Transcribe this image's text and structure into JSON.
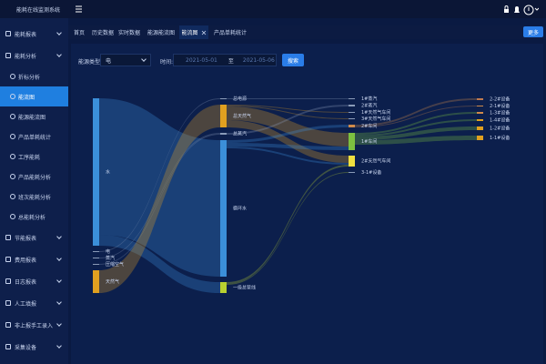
{
  "header": {
    "title": "能耗在线监测系统"
  },
  "sidebar": {
    "groups": [
      {
        "label": "能耗报表"
      },
      {
        "label": "能耗分析",
        "children": [
          "折标分析",
          "能流图",
          "能源能流图",
          "产品单耗统计",
          "工序能耗",
          "产品能耗分析",
          "班次能耗分析",
          "总能耗分析"
        ]
      },
      {
        "label": "节能报表"
      },
      {
        "label": "费用报表"
      },
      {
        "label": "日志报表"
      },
      {
        "label": "人工填报"
      },
      {
        "label": "非上报手工录入"
      },
      {
        "label": "采集设备"
      }
    ]
  },
  "tabs": {
    "items": [
      "首页",
      "历史数据",
      "实时数据",
      "能源能流图",
      "能流图",
      "产品单耗统计"
    ],
    "more": "更多"
  },
  "filter": {
    "type_label": "能源类型:",
    "type_value": "电",
    "time_label": "时间:",
    "start": "2021-05-01",
    "separator": "至",
    "end": "2021-05-06",
    "search": "搜索"
  },
  "sankey": {
    "nodes": [
      {
        "label": "水",
        "color": "#3b8fd9"
      },
      {
        "label": "电",
        "color": "#8a9bb8"
      },
      {
        "label": "蒸汽",
        "color": "#8a9bb8"
      },
      {
        "label": "压缩空气",
        "color": "#8a9bb8"
      },
      {
        "label": "天然气",
        "color": "#e0a020"
      },
      {
        "label": "总电源",
        "color": "#8a9bb8"
      },
      {
        "label": "总天然气",
        "color": "#e0a020"
      },
      {
        "label": "总蒸汽",
        "color": "#8a9bb8"
      },
      {
        "label": "循环水",
        "color": "#3b8fd9"
      },
      {
        "label": "一级总管线",
        "color": "#b8d030"
      },
      {
        "label": "1#蒸汽",
        "color": "#8a9bb8"
      },
      {
        "label": "2#蒸汽",
        "color": "#8a9bb8"
      },
      {
        "label": "1#天然气车间",
        "color": "#8a9bb8"
      },
      {
        "label": "3#天然气车间",
        "color": "#8a9bb8"
      },
      {
        "label": "2#车间",
        "color": "#d08a4a"
      },
      {
        "label": "1#车间",
        "color": "#7cc040"
      },
      {
        "label": "2#天然气车间",
        "color": "#f0e040"
      },
      {
        "label": "3-1#设备",
        "color": "#8a9bb8"
      },
      {
        "label": "2-2#设备",
        "color": "#c07a50"
      },
      {
        "label": "2-1#设备",
        "color": "#d08a4a"
      },
      {
        "label": "1-3#设备",
        "color": "#d08a4a"
      },
      {
        "label": "1-4#设备",
        "color": "#e0a020"
      },
      {
        "label": "1-2#设备",
        "color": "#e0a020"
      },
      {
        "label": "1-1#设备",
        "color": "#e0a020"
      }
    ],
    "links": [
      {
        "source": 0,
        "target": 8,
        "value": 150
      },
      {
        "source": 0,
        "target": 9,
        "value": 12
      },
      {
        "source": 1,
        "target": 5,
        "value": 1
      },
      {
        "source": 2,
        "target": 7,
        "value": 1
      },
      {
        "source": 3,
        "target": 7,
        "value": 1
      },
      {
        "source": 4,
        "target": 6,
        "value": 25
      },
      {
        "source": 5,
        "target": 10,
        "value": 1
      },
      {
        "source": 6,
        "target": 12,
        "value": 1
      },
      {
        "source": 6,
        "target": 13,
        "value": 1
      },
      {
        "source": 6,
        "target": 15,
        "value": 15
      },
      {
        "source": 6,
        "target": 16,
        "value": 8
      },
      {
        "source": 7,
        "target": 11,
        "value": 2
      },
      {
        "source": 8,
        "target": 14,
        "value": 3
      },
      {
        "source": 8,
        "target": 15,
        "value": 4
      },
      {
        "source": 8,
        "target": 16,
        "value": 2
      },
      {
        "source": 9,
        "target": 16,
        "value": 2
      },
      {
        "source": 9,
        "target": 17,
        "value": 1
      },
      {
        "source": 14,
        "target": 18,
        "value": 2
      },
      {
        "source": 14,
        "target": 19,
        "value": 1
      },
      {
        "source": 15,
        "target": 20,
        "value": 2
      },
      {
        "source": 15,
        "target": 21,
        "value": 2
      },
      {
        "source": 15,
        "target": 22,
        "value": 4
      },
      {
        "source": 15,
        "target": 23,
        "value": 5
      }
    ]
  }
}
